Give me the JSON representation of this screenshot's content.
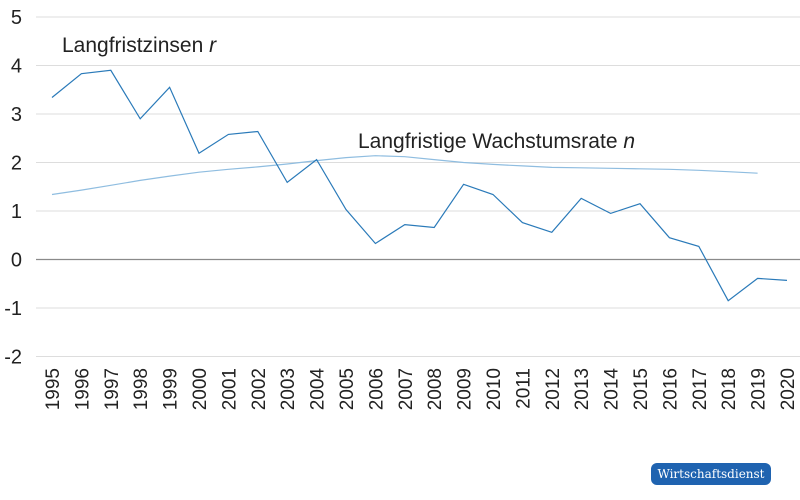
{
  "chart_data": {
    "type": "line",
    "title": "",
    "xlabel": "",
    "ylabel": "",
    "ylim": [
      -2,
      5
    ],
    "yticks": [
      5,
      4,
      3,
      2,
      1,
      0,
      -1,
      -2
    ],
    "grid": true,
    "legend_position": "inline annotations",
    "x": [
      "1995",
      "1996",
      "1997",
      "1998",
      "1999",
      "2000",
      "2001",
      "2002",
      "2003",
      "2004",
      "2005",
      "2006",
      "2007",
      "2008",
      "2009",
      "2010",
      "2011",
      "2012",
      "2013",
      "2014",
      "2015",
      "2016",
      "2017",
      "2018",
      "2019",
      "2020"
    ],
    "series": [
      {
        "name": "Langfristzinsen r",
        "color": "#2a7ab9",
        "values": [
          3.34,
          3.83,
          3.9,
          2.9,
          3.55,
          2.19,
          2.58,
          2.64,
          1.59,
          2.06,
          1.03,
          0.33,
          0.72,
          0.66,
          1.55,
          1.34,
          0.76,
          0.56,
          1.26,
          0.95,
          1.15,
          0.45,
          0.27,
          -0.85,
          -0.39,
          -0.43
        ]
      },
      {
        "name": "Langfristige Wachstumsrate n",
        "color": "#8fbde0",
        "values": [
          1.34,
          1.43,
          1.53,
          1.63,
          1.72,
          1.8,
          1.86,
          1.91,
          1.97,
          2.04,
          2.1,
          2.14,
          2.12,
          2.06,
          2.0,
          1.96,
          1.93,
          1.9,
          1.89,
          1.88,
          1.87,
          1.86,
          1.84,
          1.81,
          1.78,
          null
        ]
      }
    ],
    "annotations": [
      {
        "text": "Langfristzinsen ",
        "italic": "r"
      },
      {
        "text": "Langfristige Wachstumsrate ",
        "italic": "n"
      }
    ]
  },
  "labels": {
    "r_prefix": "Langfristzinsen ",
    "r_var": "r",
    "n_prefix": "Langfristige Wachstumsrate ",
    "n_var": "n"
  },
  "logo": {
    "text": "Wirtschaftsdienst",
    "color": "#1f63b0"
  }
}
